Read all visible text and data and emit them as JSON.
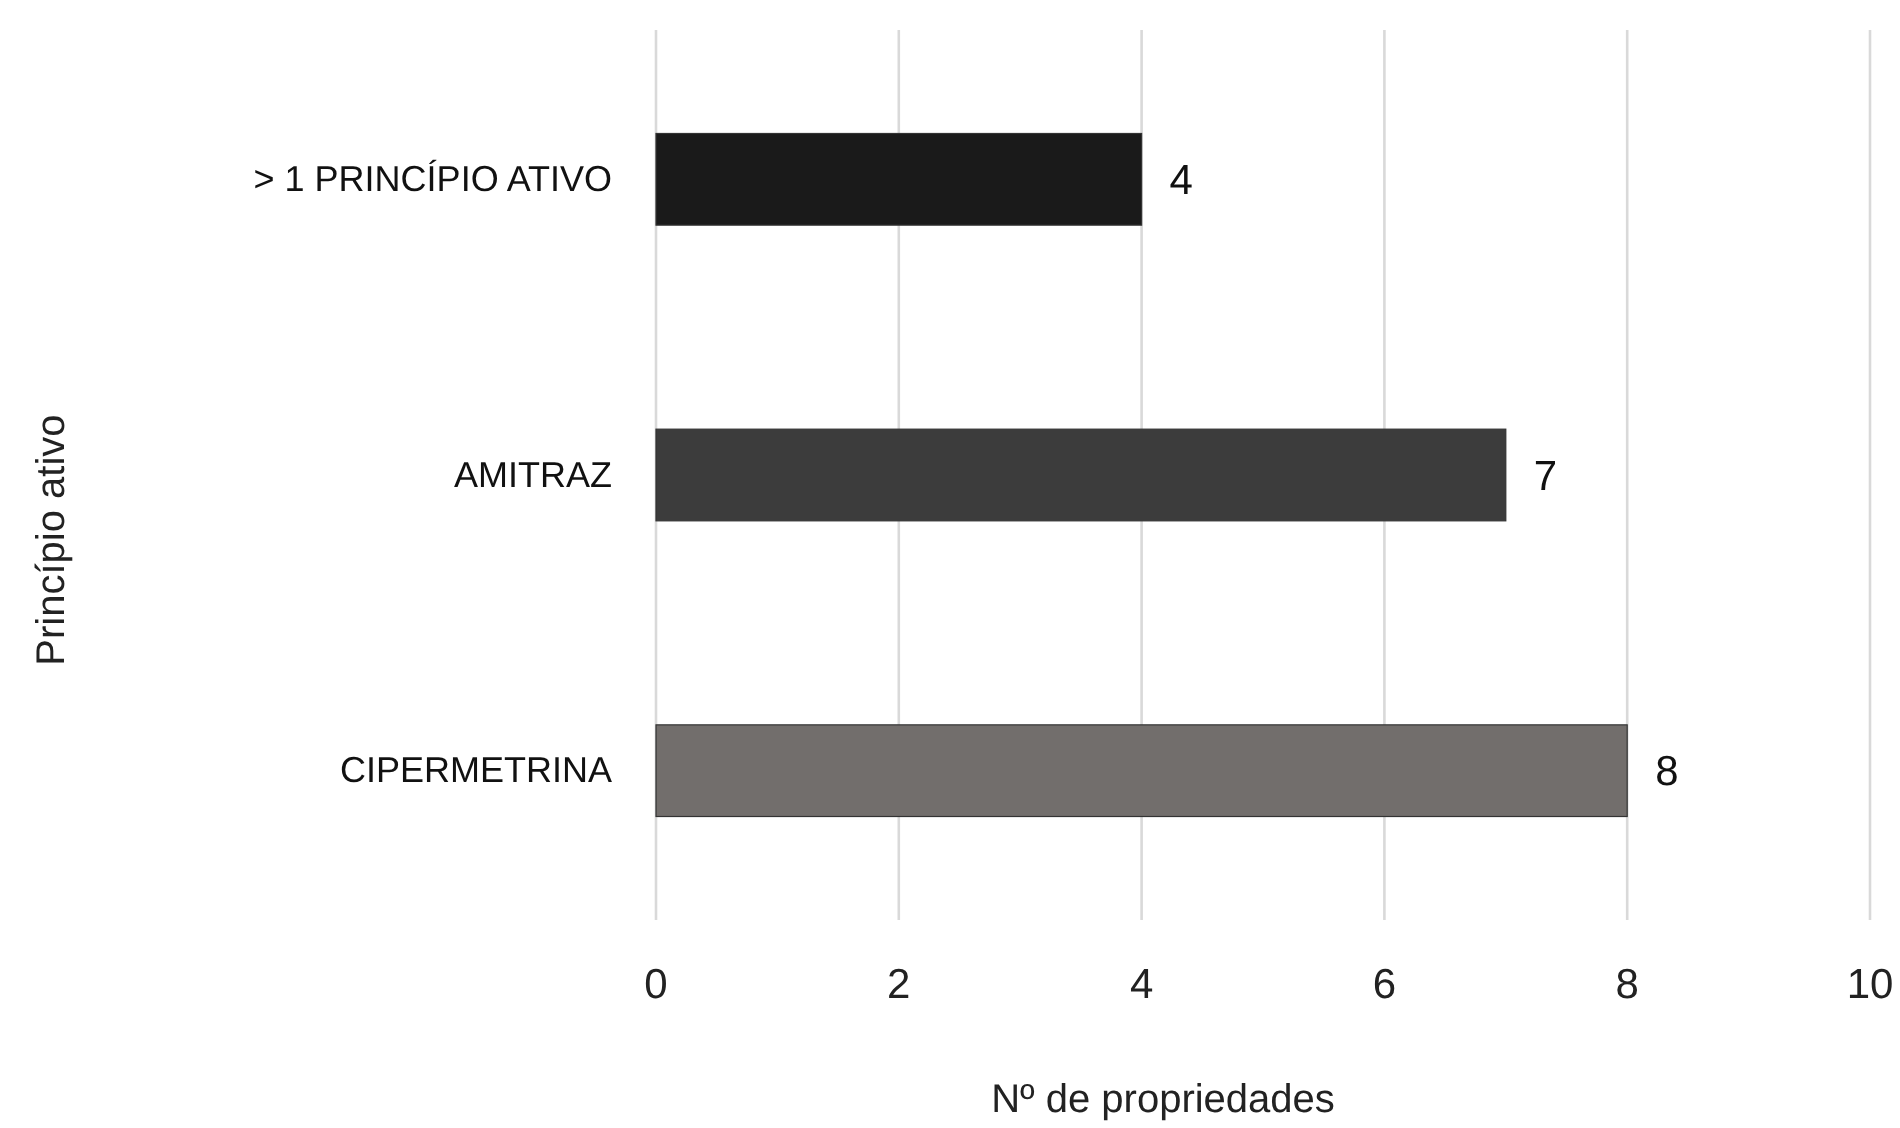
{
  "chart_data": {
    "type": "bar",
    "orientation": "horizontal",
    "categories": [
      "> 1 PRINCÍPIO ATIVO",
      "AMITRAZ",
      "CIPERMETRINA"
    ],
    "values": [
      4,
      7,
      8
    ],
    "colors": [
      "#1a1a1a",
      "#3c3c3c",
      "#726e6c"
    ],
    "xlim": [
      0,
      10
    ],
    "xticks": [
      0,
      2,
      4,
      6,
      8,
      10
    ],
    "grid": "x",
    "data_labels": true,
    "xlabel": "Nº de propriedades",
    "ylabel": "Princípio ativo"
  }
}
